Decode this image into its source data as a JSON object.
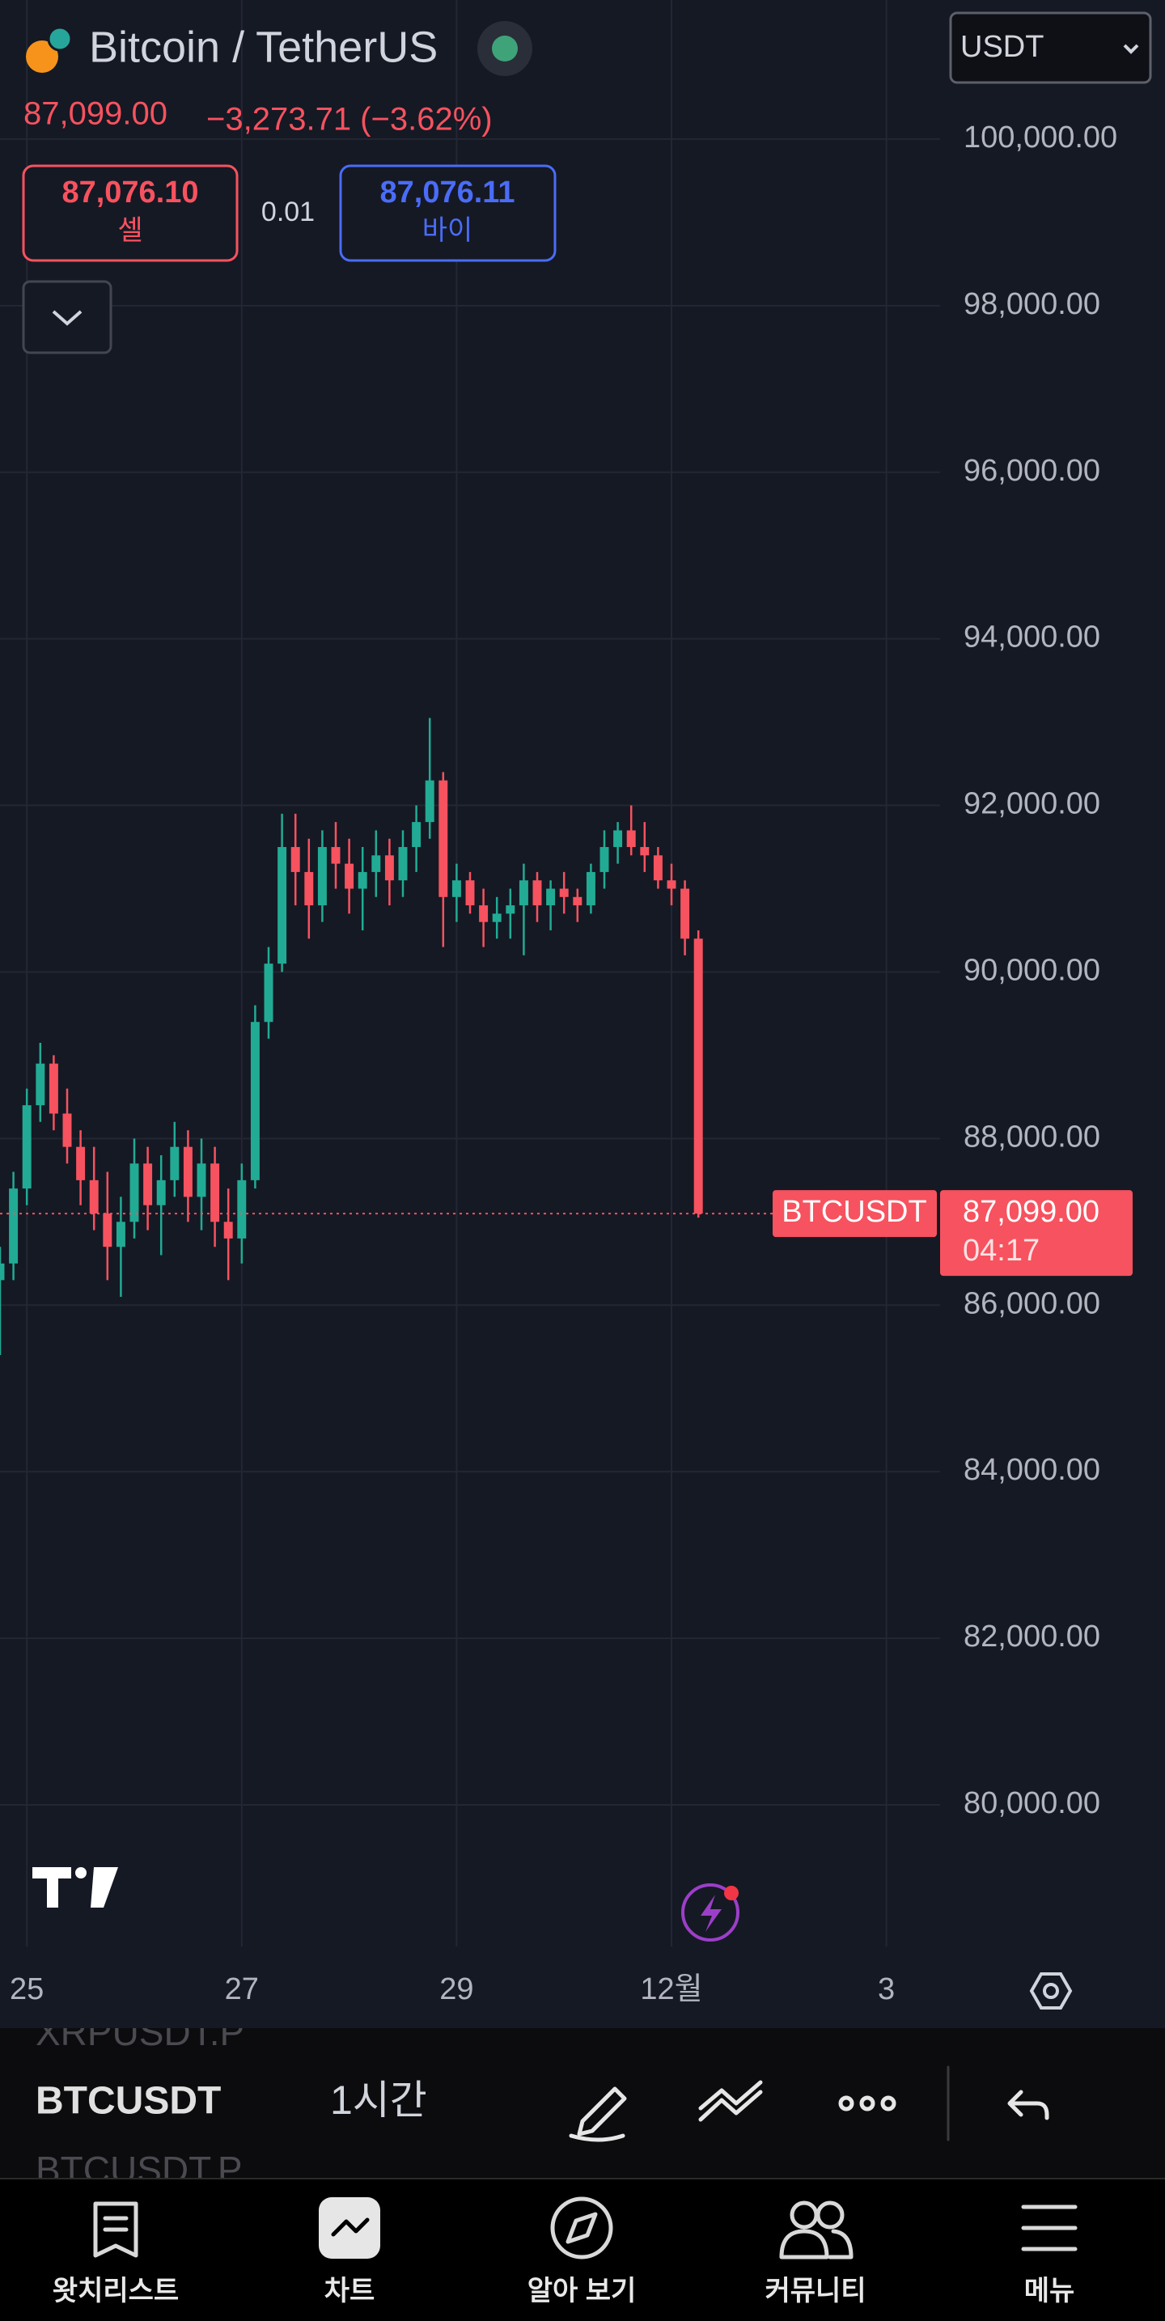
{
  "header": {
    "title": "Bitcoin / TetherUS",
    "price": "87,099.00",
    "change": "−3,273.71 (−3.62%)",
    "currency": "USDT"
  },
  "trade": {
    "sell_price": "87,076.10",
    "sell_label": "셀",
    "spread": "0.01",
    "buy_price": "87,076.11",
    "buy_label": "바이"
  },
  "chart_data": {
    "type": "candlestick",
    "x": [
      -6,
      -3,
      0,
      3,
      6,
      9,
      12,
      15,
      18,
      21,
      24,
      27,
      30,
      33,
      36,
      39,
      42,
      45,
      48,
      51,
      54,
      57,
      60,
      63,
      66,
      69,
      72,
      75,
      78,
      81,
      84,
      87,
      90,
      93,
      96,
      99,
      102,
      105,
      108,
      111,
      114,
      117,
      120,
      123,
      126,
      129,
      132,
      135,
      138,
      141,
      144,
      147,
      150
    ],
    "open": [
      86300,
      86500,
      87400,
      88400,
      88900,
      88300,
      87900,
      87500,
      87100,
      86700,
      87000,
      87700,
      87200,
      87500,
      87900,
      87300,
      87700,
      87000,
      86800,
      87500,
      89400,
      90100,
      91500,
      91200,
      90800,
      91500,
      91300,
      91000,
      91200,
      91400,
      91100,
      91500,
      91800,
      92300,
      90900,
      91100,
      90800,
      90600,
      90700,
      90800,
      91100,
      90800,
      91000,
      90900,
      90800,
      91200,
      91500,
      91700,
      91500,
      91400,
      91100,
      91000,
      90400
    ],
    "high": [
      86700,
      87600,
      88600,
      89150,
      89000,
      88600,
      88100,
      87900,
      87600,
      87300,
      88000,
      87900,
      87800,
      88200,
      88100,
      88000,
      87900,
      87400,
      87700,
      89600,
      90300,
      91900,
      91900,
      91600,
      91700,
      91800,
      91600,
      91500,
      91700,
      91600,
      91700,
      92000,
      93050,
      92400,
      91300,
      91200,
      91000,
      90900,
      91000,
      91300,
      91200,
      91100,
      91200,
      91000,
      91300,
      91700,
      91800,
      92000,
      91800,
      91500,
      91300,
      91100,
      90500
    ],
    "low": [
      85400,
      86300,
      87200,
      88200,
      88100,
      87700,
      87200,
      86900,
      86300,
      86100,
      86800,
      86900,
      86600,
      87300,
      87000,
      86900,
      86700,
      86300,
      86500,
      87400,
      89200,
      90000,
      90800,
      90400,
      90600,
      91000,
      90700,
      90500,
      90900,
      90800,
      90900,
      91200,
      91600,
      90300,
      90600,
      90700,
      90300,
      90400,
      90400,
      90200,
      90600,
      90500,
      90700,
      90600,
      90700,
      91000,
      91300,
      91400,
      91200,
      91000,
      90800,
      90200,
      87050
    ],
    "close": [
      86500,
      87400,
      88400,
      88900,
      88300,
      87900,
      87500,
      87100,
      86700,
      87000,
      87700,
      87200,
      87500,
      87900,
      87300,
      87700,
      87000,
      86800,
      87500,
      89400,
      90100,
      91500,
      91200,
      90800,
      91500,
      91300,
      91000,
      91200,
      91400,
      91100,
      91500,
      91800,
      92300,
      90900,
      91100,
      90800,
      90600,
      90700,
      90800,
      91100,
      90800,
      91000,
      90900,
      90800,
      91200,
      91500,
      91700,
      91500,
      91400,
      91100,
      91000,
      90400,
      87099
    ],
    "up_color": "#22ab94",
    "down_color": "#f7525f",
    "xlim": [
      -6,
      204
    ],
    "xticks": [
      {
        "value": 0,
        "label": "25"
      },
      {
        "value": 48,
        "label": "27"
      },
      {
        "value": 96,
        "label": "29"
      },
      {
        "value": 144,
        "label": "12월"
      },
      {
        "value": 192,
        "label": "3"
      }
    ],
    "ylim": [
      78300,
      101670
    ],
    "yticks": [
      {
        "value": 80000,
        "label": "80,000.00"
      },
      {
        "value": 82000,
        "label": "82,000.00"
      },
      {
        "value": 84000,
        "label": "84,000.00"
      },
      {
        "value": 86000,
        "label": "86,000.00"
      },
      {
        "value": 88000,
        "label": "88,000.00"
      },
      {
        "value": 90000,
        "label": "90,000.00"
      },
      {
        "value": 92000,
        "label": "92,000.00"
      },
      {
        "value": 94000,
        "label": "94,000.00"
      },
      {
        "value": 96000,
        "label": "96,000.00"
      },
      {
        "value": 98000,
        "label": "98,000.00"
      },
      {
        "value": 100000,
        "label": "100,000.00"
      }
    ],
    "grid": true,
    "last_price": {
      "symbol": "BTCUSDT",
      "value": 87099,
      "label": "87,099.00",
      "countdown": "04:17"
    }
  },
  "toolbar": {
    "symbols": [
      "XRPUSDT.P",
      "BTCUSDT",
      "BTCUSDT.P"
    ],
    "interval": "1시간"
  },
  "nav": [
    "왓치리스트",
    "차트",
    "알아 보기",
    "커뮤니티",
    "메뉴"
  ]
}
